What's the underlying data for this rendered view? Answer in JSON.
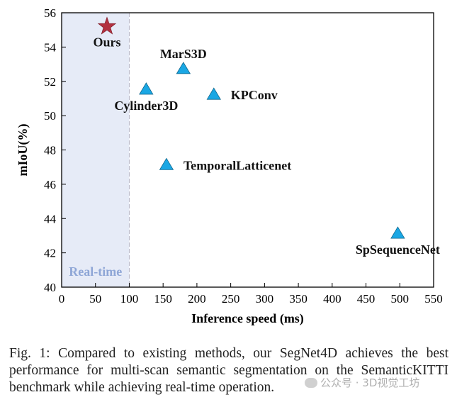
{
  "chart_data": {
    "type": "scatter",
    "xlabel": "Inference speed (ms)",
    "ylabel": "mIoU(%)",
    "xlim": [
      0,
      550
    ],
    "ylim": [
      40,
      56
    ],
    "xticks": [
      "0",
      "50",
      "100",
      "150",
      "200",
      "250",
      "300",
      "350",
      "400",
      "450",
      "500",
      "550"
    ],
    "yticks": [
      "40",
      "42",
      "44",
      "46",
      "48",
      "50",
      "52",
      "54",
      "56"
    ],
    "grid": false,
    "shaded_region": {
      "label": "Real-time",
      "x_from": 0,
      "x_to": 100,
      "color": "#e6ebf7"
    },
    "points": [
      {
        "name": "Ours",
        "x": 67,
        "y": 55.2,
        "marker": "star",
        "color": "#b2303f",
        "label_pos": "below"
      },
      {
        "name": "MarS3D",
        "x": 180,
        "y": 52.7,
        "marker": "triangle",
        "color": "#1aa7e4",
        "label_pos": "above"
      },
      {
        "name": "Cylinder3D",
        "x": 125,
        "y": 51.5,
        "marker": "triangle",
        "color": "#1aa7e4",
        "label_pos": "below"
      },
      {
        "name": "KPConv",
        "x": 225,
        "y": 51.2,
        "marker": "triangle",
        "color": "#1aa7e4",
        "label_pos": "right"
      },
      {
        "name": "TemporalLatticenet",
        "x": 155,
        "y": 47.1,
        "marker": "triangle",
        "color": "#1aa7e4",
        "label_pos": "right"
      },
      {
        "name": "SpSequenceNet",
        "x": 497,
        "y": 43.1,
        "marker": "triangle",
        "color": "#1aa7e4",
        "label_pos": "below"
      }
    ]
  },
  "caption": "Fig. 1: Compared to existing methods, our SegNet4D achieves the best performance for multi-scan semantic segmentation on the SemanticKITTI benchmark while achieving real-time operation.",
  "watermark": "公众号 · 3D视觉工坊"
}
